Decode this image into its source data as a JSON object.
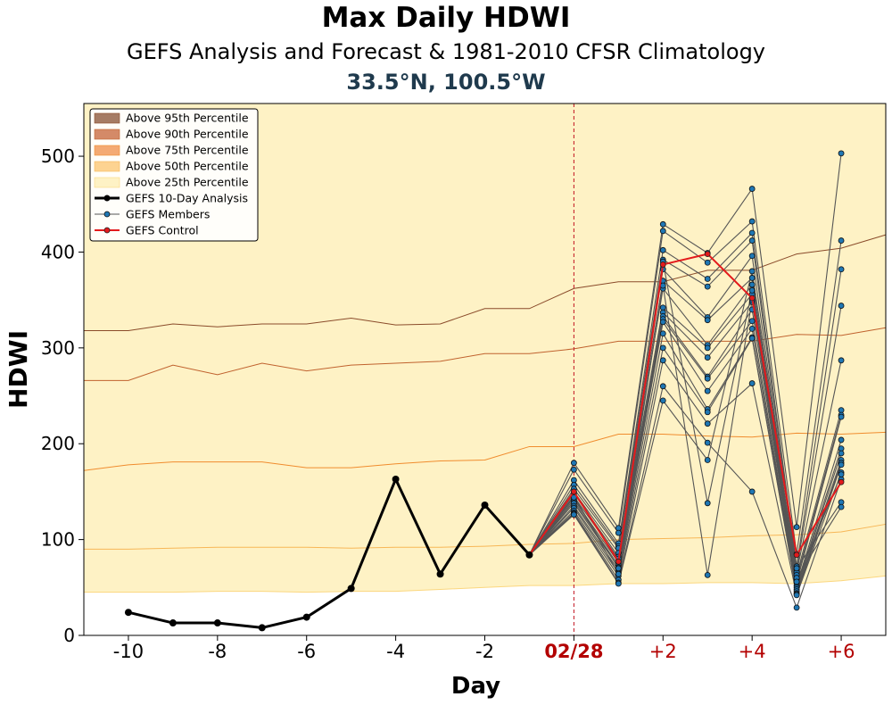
{
  "chart_data": {
    "type": "line",
    "title": "Max Daily HDWI",
    "subtitle": "GEFS Analysis and Forecast & 1981-2010 CFSR Climatology",
    "location": "33.5°N, 100.5°W",
    "xlabel": "Day",
    "ylabel": "HDWI",
    "xlim": [
      -11,
      7
    ],
    "ylim": [
      0,
      555
    ],
    "x_ticks": [
      -10,
      -8,
      -6,
      -4,
      -2,
      0,
      2,
      4,
      6
    ],
    "x_tick_labels": [
      "-10",
      "-8",
      "-6",
      "-4",
      "-2",
      "02/28",
      "+2",
      "+4",
      "+6"
    ],
    "y_ticks": [
      0,
      100,
      200,
      300,
      400,
      500
    ],
    "y_tick_labels": [
      "0",
      "100",
      "200",
      "300",
      "400",
      "500"
    ],
    "date_marker_x": 0,
    "legend_position": "top-left",
    "colors": {
      "p95": "#a67c65",
      "p90": "#d48a68",
      "p75": "#f4aa73",
      "p50": "#fdd391",
      "p25": "#fef2c5",
      "analysis": "#000000",
      "members_line": "#555555",
      "members_marker": "#1f77b4",
      "control": "#e31a1c",
      "forecast_tick": "#b30000",
      "location": "#1f3a4d"
    },
    "percentile_x": [
      -11,
      -10,
      -9,
      -8,
      -7,
      -6,
      -5,
      -4,
      -3,
      -2,
      -1,
      0,
      1,
      2,
      3,
      4,
      5,
      6,
      7
    ],
    "percentiles": [
      {
        "name": "Above 95th Percentile",
        "key": "p95",
        "values": [
          318,
          318,
          325,
          322,
          325,
          325,
          331,
          324,
          325,
          341,
          341,
          362,
          369,
          369,
          381,
          381,
          398,
          404,
          418
        ]
      },
      {
        "name": "Above 90th Percentile",
        "key": "p90",
        "values": [
          266,
          266,
          282,
          272,
          284,
          276,
          282,
          284,
          286,
          294,
          294,
          299,
          307,
          307,
          307,
          307,
          314,
          313,
          321
        ]
      },
      {
        "name": "Above 75th Percentile",
        "key": "p75",
        "values": [
          172,
          178,
          181,
          181,
          181,
          175,
          175,
          179,
          182,
          183,
          197,
          197,
          210,
          210,
          208,
          207,
          211,
          210,
          212
        ]
      },
      {
        "name": "Above 50th Percentile",
        "key": "p50",
        "values": [
          90,
          90,
          91,
          92,
          92,
          92,
          91,
          92,
          92,
          93,
          95,
          96,
          100,
          101,
          102,
          104,
          105,
          108,
          116
        ]
      },
      {
        "name": "Above 25th Percentile",
        "key": "p25",
        "values": [
          45,
          45,
          45,
          46,
          46,
          45,
          46,
          46,
          48,
          50,
          52,
          52,
          54,
          54,
          55,
          55,
          54,
          57,
          62
        ]
      }
    ],
    "analysis": {
      "name": "GEFS 10-Day Analysis",
      "x": [
        -10,
        -9,
        -8,
        -7,
        -6,
        -5,
        -4,
        -3,
        -2,
        -1
      ],
      "y": [
        24,
        13,
        13,
        8,
        19,
        49,
        163,
        64,
        136,
        84
      ]
    },
    "members": {
      "name": "GEFS Members",
      "x": [
        -1,
        0,
        1,
        2,
        3,
        4,
        5,
        6
      ],
      "series": [
        [
          84,
          180,
          112,
          429,
          399,
          466,
          113,
          503
        ],
        [
          84,
          173,
          107,
          422,
          389,
          432,
          85,
          412
        ],
        [
          84,
          162,
          96,
          402,
          372,
          420,
          72,
          382
        ],
        [
          84,
          157,
          93,
          392,
          364,
          412,
          69,
          344
        ],
        [
          84,
          153,
          91,
          382,
          332,
          396,
          66,
          287
        ],
        [
          84,
          150,
          86,
          370,
          329,
          373,
          63,
          235
        ],
        [
          84,
          148,
          82,
          362,
          303,
          366,
          59,
          230
        ],
        [
          84,
          145,
          80,
          342,
          300,
          356,
          55,
          228
        ],
        [
          84,
          142,
          76,
          337,
          290,
          348,
          52,
          204
        ],
        [
          84,
          140,
          73,
          333,
          270,
          340,
          50,
          195
        ],
        [
          84,
          138,
          71,
          330,
          268,
          328,
          48,
          190
        ],
        [
          84,
          135,
          68,
          327,
          255,
          320,
          46,
          183
        ],
        [
          84,
          133,
          65,
          315,
          236,
          311,
          44,
          180
        ],
        [
          84,
          130,
          62,
          300,
          233,
          310,
          43,
          178
        ],
        [
          84,
          128,
          58,
          287,
          221,
          263,
          42,
          170
        ],
        [
          84,
          127,
          55,
          260,
          201,
          150,
          29,
          163
        ],
        [
          84,
          126,
          54,
          245,
          183,
          380,
          70,
          139
        ],
        [
          84,
          146,
          64,
          390,
          138,
          360,
          60,
          134
        ],
        [
          84,
          144,
          70,
          365,
          63,
          350,
          56,
          168
        ]
      ]
    },
    "control": {
      "name": "GEFS Control",
      "x": [
        -1,
        0,
        1,
        2,
        3,
        4,
        5,
        6
      ],
      "y": [
        84,
        150,
        77,
        387,
        398,
        352,
        84,
        160
      ]
    },
    "legend": [
      {
        "label": "Above 95th Percentile",
        "kind": "patch",
        "key": "p95"
      },
      {
        "label": "Above 90th Percentile",
        "kind": "patch",
        "key": "p90"
      },
      {
        "label": "Above 75th Percentile",
        "kind": "patch",
        "key": "p75"
      },
      {
        "label": "Above 50th Percentile",
        "kind": "patch",
        "key": "p50"
      },
      {
        "label": "Above 25th Percentile",
        "kind": "patch",
        "key": "p25"
      },
      {
        "label": "GEFS 10-Day Analysis",
        "kind": "analysis"
      },
      {
        "label": "GEFS Members",
        "kind": "members"
      },
      {
        "label": "GEFS Control",
        "kind": "control"
      }
    ]
  }
}
